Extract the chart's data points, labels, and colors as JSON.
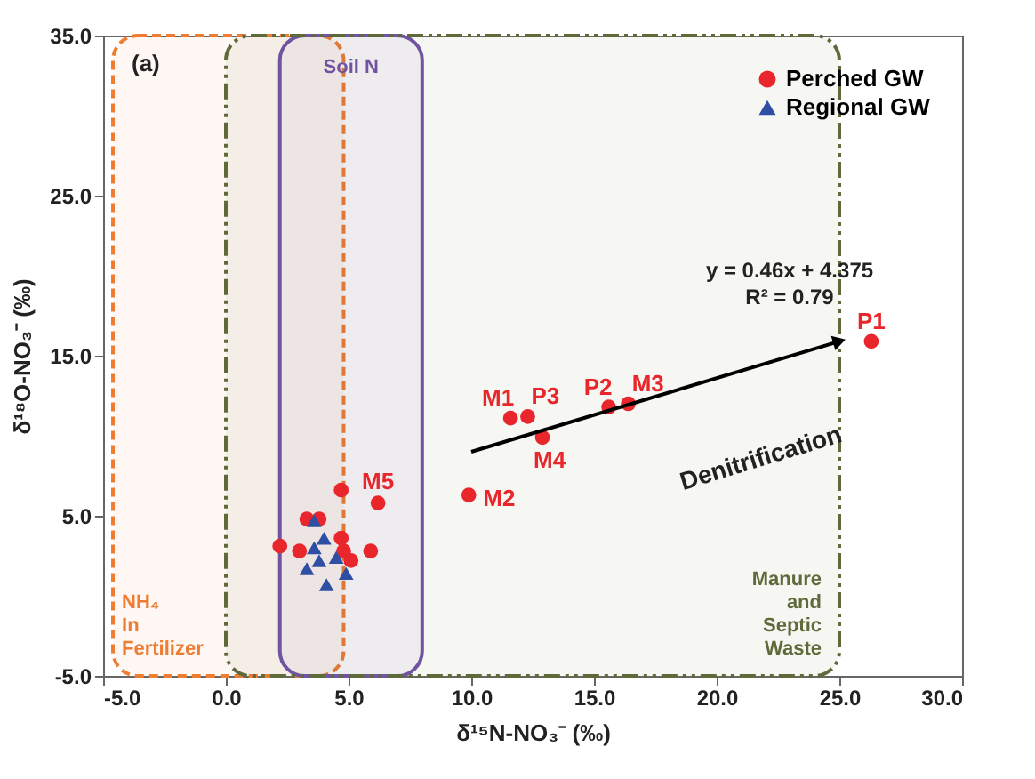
{
  "chart_data": {
    "type": "scatter",
    "xlabel": "δ¹⁵N-NO₃⁻ (‰)",
    "ylabel": "δ¹⁸O-NO₃⁻ (‰)",
    "xlim": [
      -5,
      30
    ],
    "ylim": [
      -5,
      35
    ],
    "xticks": [
      {
        "value": -5,
        "label": "-5.0"
      },
      {
        "value": 0,
        "label": "0.0"
      },
      {
        "value": 5,
        "label": "5.0"
      },
      {
        "value": 10,
        "label": "10.0"
      },
      {
        "value": 15,
        "label": "15.0"
      },
      {
        "value": 20,
        "label": "20.0"
      },
      {
        "value": 25,
        "label": "25.0"
      },
      {
        "value": 30,
        "label": "30.0"
      }
    ],
    "yticks": [
      {
        "value": -5,
        "label": "-5.0"
      },
      {
        "value": 5,
        "label": "5.0"
      },
      {
        "value": 15,
        "label": "15.0"
      },
      {
        "value": 25,
        "label": "25.0"
      },
      {
        "value": 35,
        "label": "35.0"
      }
    ],
    "grid": false,
    "legend": "top right",
    "series": [
      {
        "name": "Perched GW",
        "color": "#e8262b",
        "marker": "circle",
        "x": [
          26.3,
          11.6,
          12.3,
          12.9,
          15.6,
          16.4,
          9.9,
          6.2,
          4.7,
          3.3,
          3.8,
          2.2,
          3.0,
          4.7,
          5.1,
          5.9,
          4.8
        ],
        "values": [
          15.9,
          11.1,
          11.2,
          9.9,
          11.8,
          12.0,
          6.3,
          5.8,
          6.6,
          4.8,
          4.8,
          3.1,
          2.8,
          3.6,
          2.2,
          2.8,
          2.8
        ],
        "value_labels": [
          "P1",
          "M1",
          "P3",
          "M4",
          "P2",
          "M3",
          "M2",
          "M5",
          null,
          null,
          null,
          null,
          null,
          null,
          null,
          null,
          null
        ]
      },
      {
        "name": "Regional GW",
        "color": "#2e4fa3",
        "marker": "triangle",
        "x": [
          3.6,
          4.0,
          3.6,
          3.3,
          4.5,
          4.9,
          4.1,
          3.8
        ],
        "values": [
          4.7,
          3.6,
          3.0,
          1.7,
          2.4,
          1.4,
          0.7,
          2.2
        ]
      },
      {
        "type": "line",
        "color": "#000000",
        "x": [
          10,
          25
        ],
        "values": [
          9.0,
          15.9
        ]
      }
    ],
    "bands": [
      {
        "axis": "x",
        "from": -4.6,
        "to": 4.8,
        "label": "NH₄ In Fertilizer",
        "color": "#ee7d31"
      },
      {
        "axis": "x",
        "from": 2.2,
        "to": 8.0,
        "label": "Soil N",
        "color": "#7253a8"
      },
      {
        "axis": "x",
        "from": 0.0,
        "to": 25.0,
        "label": "Manure and Septic Waste",
        "color": "#5f6a3a"
      }
    ],
    "annotations": [
      "(a)",
      "y = 0.46x + 4.375",
      "R² = 0.79",
      "Denitrification"
    ]
  }
}
